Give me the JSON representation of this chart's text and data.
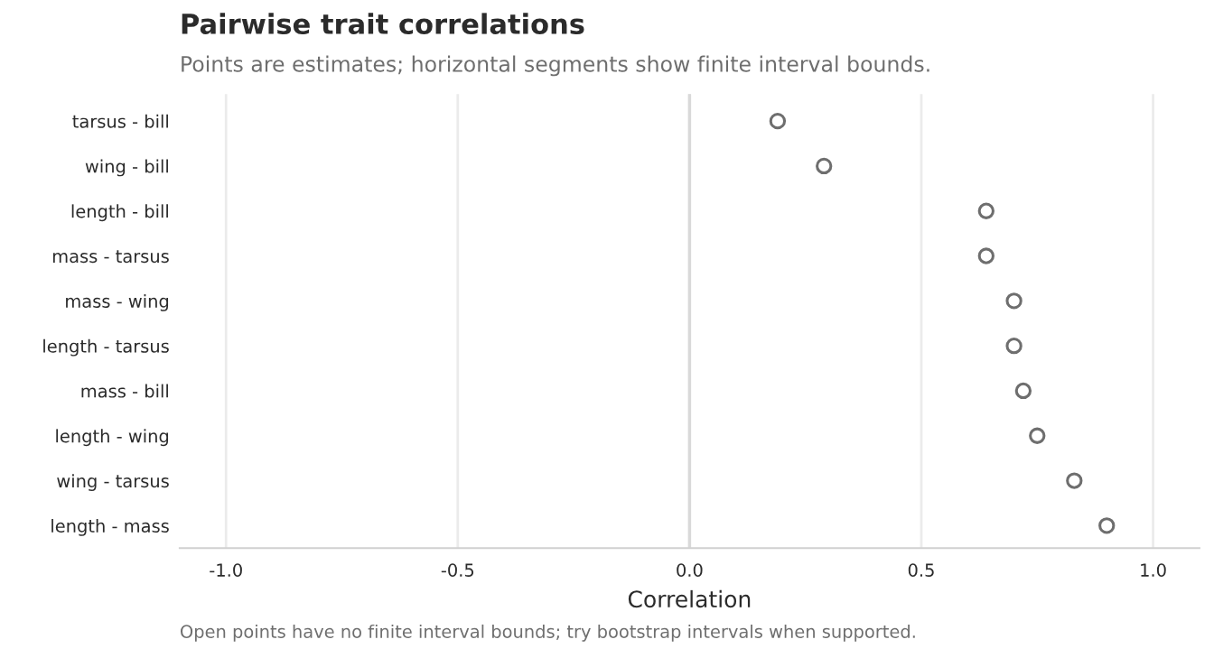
{
  "chart_data": {
    "type": "scatter",
    "orientation": "horizontal",
    "title": "Pairwise trait correlations",
    "subtitle": "Points are estimates; horizontal segments show finite interval bounds.",
    "xlabel": "Correlation",
    "annotations": [
      "Open points have no finite interval bounds; try bootstrap intervals when supported."
    ],
    "categories": [
      "tarsus - bill",
      "wing - bill",
      "length - bill",
      "mass - tarsus",
      "mass - wing",
      "length - tarsus",
      "mass - bill",
      "length - wing",
      "wing - tarsus",
      "length - mass"
    ],
    "series": [
      {
        "color": "#6e6e6e",
        "values": [
          0.19,
          0.29,
          0.64,
          0.64,
          0.7,
          0.7,
          0.72,
          0.75,
          0.83,
          0.9
        ]
      }
    ],
    "xlim": [
      -1.1,
      1.1
    ],
    "xticks": [
      {
        "value": -1,
        "label": "-1.0"
      },
      {
        "value": -0.5,
        "label": "-0.5"
      },
      {
        "value": 0,
        "label": "0.0"
      },
      {
        "value": 0.5,
        "label": "0.5"
      },
      {
        "value": 1,
        "label": "1.0"
      }
    ],
    "ref_lines": [
      {
        "axis": "x",
        "value": 0,
        "color": "#d9d9d9"
      }
    ],
    "grid": "x",
    "marker": "circle",
    "legend": false
  }
}
